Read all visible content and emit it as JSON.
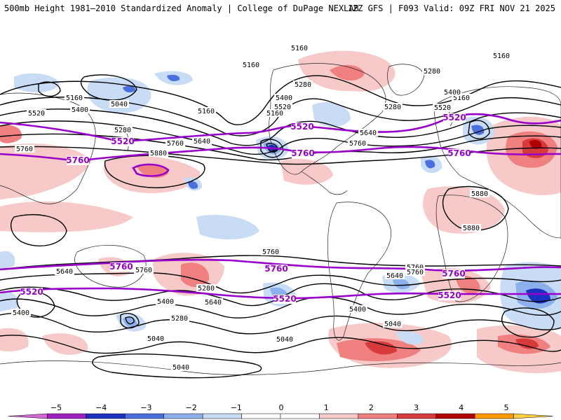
{
  "header": {
    "left": "500mb Height 1981–2010 Standardized Anomaly | College of DuPage NEXLAB",
    "right": "12Z GFS | F093 Valid: 09Z FRI NOV 21 2025"
  },
  "colors": {
    "pos1": "#f7c9c9",
    "pos2": "#f08080",
    "pos3": "#d63a3a",
    "pos4": "#b00000",
    "neg1": "#c8dcf5",
    "neg2": "#8cb0ec",
    "neg3": "#4a70e0",
    "neg4": "#1a30c0",
    "highlight": "#9900cc"
  },
  "contour_labels": [
    {
      "text": "5160"
    },
    {
      "text": "5160"
    },
    {
      "text": "5160"
    },
    {
      "text": "5160"
    },
    {
      "text": "5160"
    },
    {
      "text": "5160"
    },
    {
      "text": "5160"
    },
    {
      "text": "5280"
    },
    {
      "text": "5280"
    },
    {
      "text": "5280"
    },
    {
      "text": "5280"
    },
    {
      "text": "5280"
    },
    {
      "text": "5280"
    },
    {
      "text": "5400"
    },
    {
      "text": "5400"
    },
    {
      "text": "5400"
    },
    {
      "text": "5400"
    },
    {
      "text": "5400"
    },
    {
      "text": "5400"
    },
    {
      "text": "5040"
    },
    {
      "text": "5040"
    },
    {
      "text": "5040"
    },
    {
      "text": "5040"
    },
    {
      "text": "5040"
    },
    {
      "text": "5520"
    },
    {
      "text": "5520"
    },
    {
      "text": "5520"
    },
    {
      "text": "5640"
    },
    {
      "text": "5640"
    },
    {
      "text": "5640"
    },
    {
      "text": "5640"
    },
    {
      "text": "5640"
    },
    {
      "text": "5760"
    },
    {
      "text": "5760"
    },
    {
      "text": "5760"
    },
    {
      "text": "5760"
    },
    {
      "text": "5760"
    },
    {
      "text": "5760"
    },
    {
      "text": "5760"
    },
    {
      "text": "5880"
    },
    {
      "text": "5880"
    },
    {
      "text": "5880"
    }
  ],
  "highlight_labels": [
    {
      "text": "5520"
    },
    {
      "text": "5520"
    },
    {
      "text": "5520"
    },
    {
      "text": "5520"
    },
    {
      "text": "5520"
    },
    {
      "text": "5520"
    },
    {
      "text": "5760"
    },
    {
      "text": "5760"
    },
    {
      "text": "5760"
    },
    {
      "text": "5760"
    },
    {
      "text": "5760"
    },
    {
      "text": "5760"
    }
  ],
  "colorbar": {
    "ticks": [
      "−5",
      "−4",
      "−3",
      "−2",
      "−1",
      "0",
      "1",
      "2",
      "3",
      "4",
      "5"
    ],
    "colors": [
      "#d36ad3",
      "#a020c0",
      "#1a30c0",
      "#4a70e0",
      "#8cb0ec",
      "#c8dcf5",
      "#ffffff",
      "#ffffff",
      "#f7c9c9",
      "#f08080",
      "#d63a3a",
      "#b00000",
      "#ff9900",
      "#ffd040"
    ]
  }
}
